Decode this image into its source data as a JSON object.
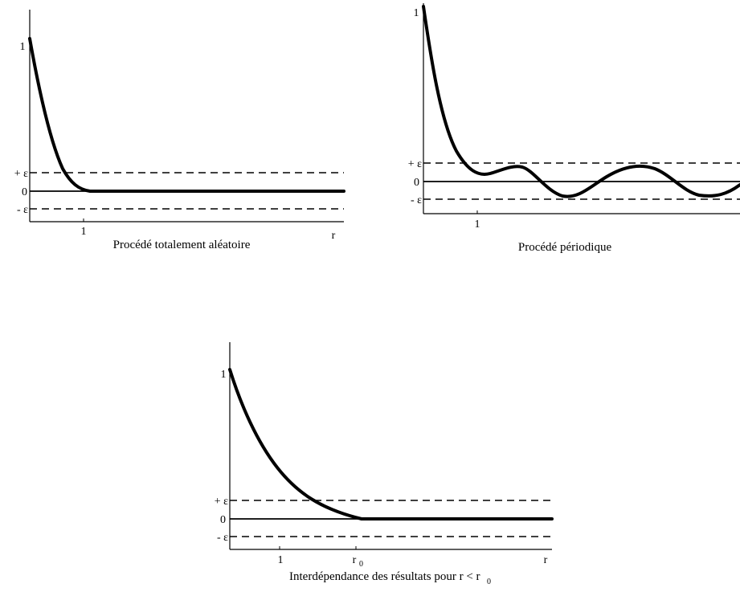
{
  "panels": {
    "random": {
      "caption": "Procédé totalement aléatoire",
      "y_top_label": "1",
      "plus_eps_label": "+ ε",
      "zero_label": "0",
      "minus_eps_label": "- ε",
      "tick_one_label": "1",
      "r_label": "r"
    },
    "periodic": {
      "caption": "Procédé périodique",
      "y_top_label": "1",
      "plus_eps_label": "+ ε",
      "zero_label": "0",
      "minus_eps_label": "- ε",
      "tick_one_label": "1"
    },
    "interdependence": {
      "caption": "Interdépendance des résultats pour r < r",
      "caption_subscript": "0",
      "y_top_label": "1",
      "plus_eps_label": "+ ε",
      "zero_label": "0",
      "minus_eps_label": "- ε",
      "tick_one_label": "1",
      "tick_r0_label": "r",
      "tick_r0_subscript": "0",
      "r_label": "r"
    }
  }
}
